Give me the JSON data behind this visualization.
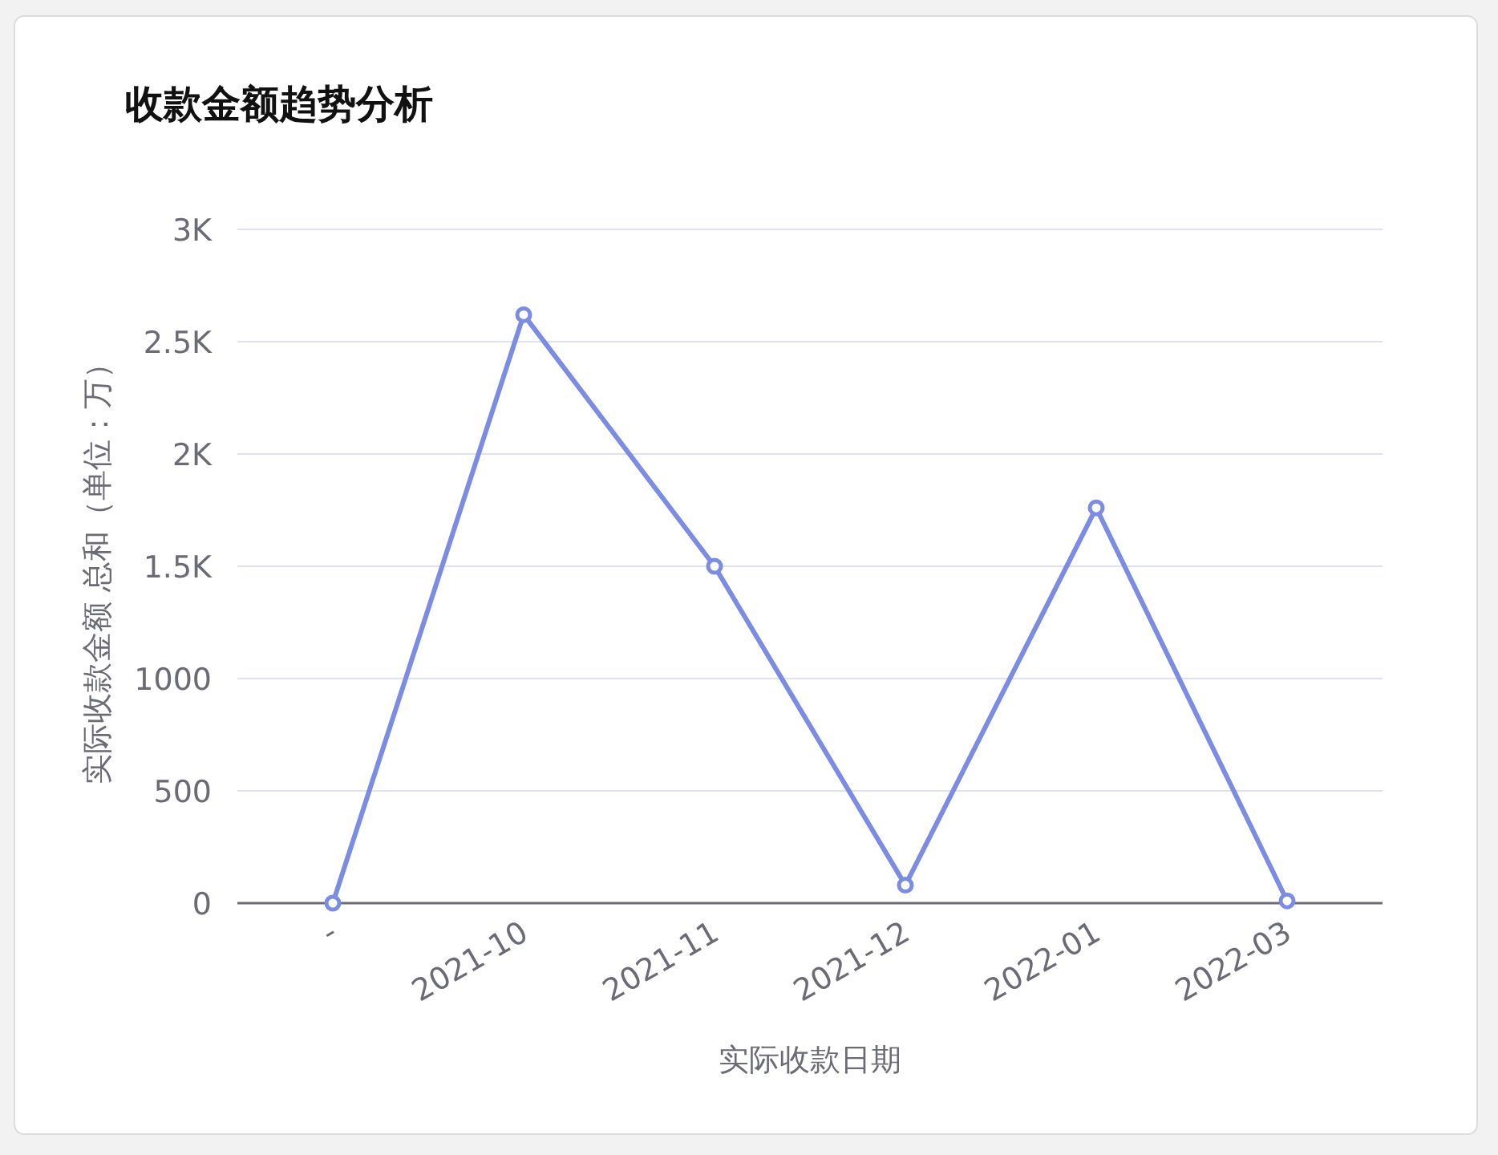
{
  "chart_data": {
    "type": "line",
    "title": "收款金额趋势分析",
    "xlabel": "实际收款日期",
    "ylabel": "实际收款金额 总和（单位：万）",
    "categories": [
      "-",
      "2021-10",
      "2021-11",
      "2021-12",
      "2022-01",
      "2022-03"
    ],
    "series": [
      {
        "color": "#7b8ce2",
        "values": [
          0,
          2620,
          1500,
          80,
          1760,
          10
        ]
      }
    ],
    "ylim": [
      0,
      3000
    ],
    "yticks": [
      0,
      500,
      1000,
      {
        "value": 1500,
        "label": "1.5K"
      },
      {
        "value": 2000,
        "label": "2K"
      },
      {
        "value": 2500,
        "label": "2.5K"
      },
      {
        "value": 3000,
        "label": "3K"
      }
    ],
    "grid": "y",
    "marker": "circle",
    "line_style": "solid"
  }
}
